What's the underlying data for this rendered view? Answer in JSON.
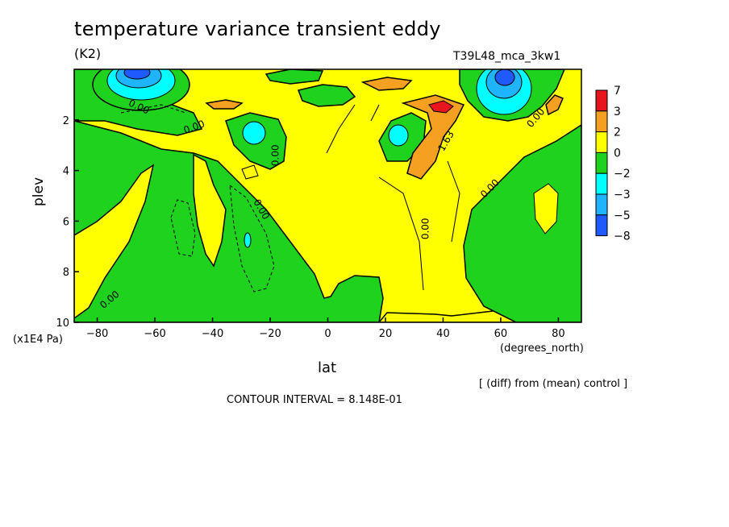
{
  "chart_data": {
    "type": "heatmap",
    "title": "temperature variance transient eddy",
    "units": "(K2)",
    "run_label": "T39L48_mca_3kw1",
    "xlabel": "lat",
    "x_units": "(degrees_north)",
    "ylabel": "plev",
    "y_units": "(x1E4 Pa)",
    "xlim": [
      -88,
      88
    ],
    "ylim": [
      10,
      0
    ],
    "x_ticks": [
      -80,
      -60,
      -40,
      -20,
      0,
      20,
      40,
      60,
      80
    ],
    "y_ticks": [
      2,
      4,
      6,
      8,
      10
    ],
    "colorbar": {
      "labels": [
        "7",
        "3",
        "2",
        "0",
        "−2",
        "−3",
        "−5",
        "−8"
      ],
      "colors": [
        "#e8141e",
        "#f5a020",
        "#ffff00",
        "#1ed21e",
        "#00ffff",
        "#1eb4ff",
        "#1e5aff"
      ]
    },
    "contour_labels": [
      "0.00",
      "0.00",
      "0.00",
      "0.00",
      "0.00",
      "0.00",
      "0.00",
      "0.00",
      "1.63"
    ],
    "note": "[ (diff) from (mean) control ]",
    "contour_interval": "CONTOUR INTERVAL = 8.148E-01"
  }
}
